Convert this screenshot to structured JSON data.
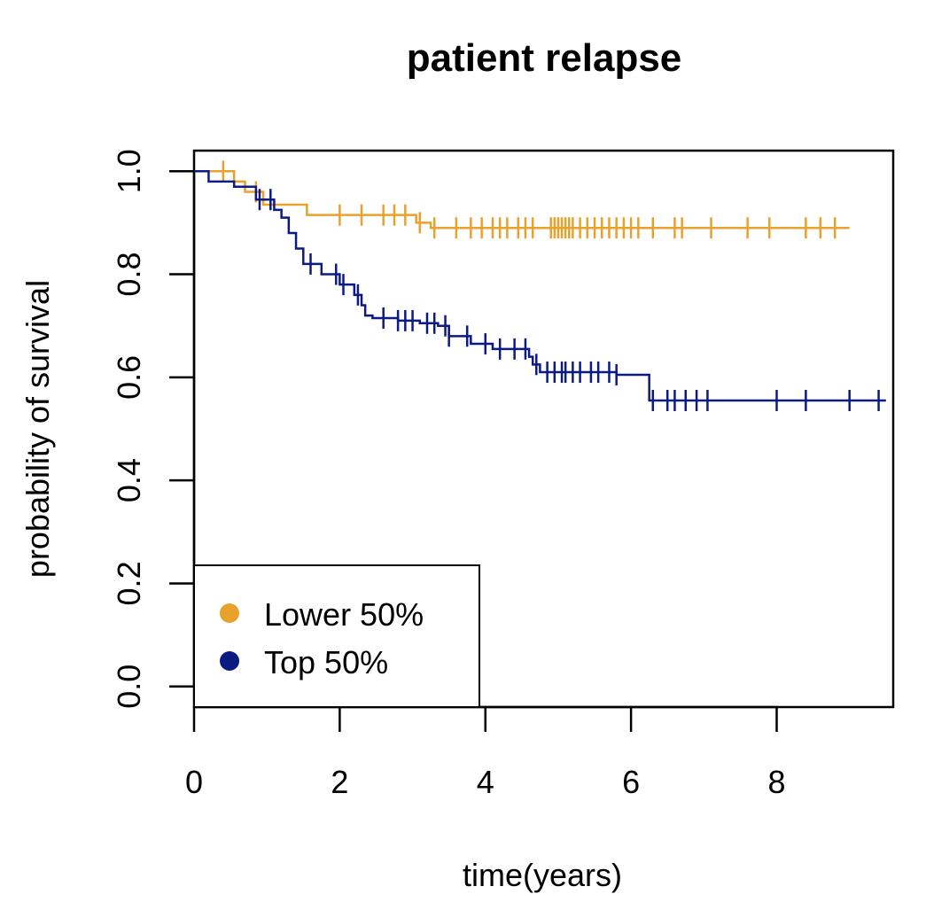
{
  "chart_data": {
    "type": "line",
    "title": "patient relapse",
    "xlabel": "time(years)",
    "ylabel": "probability of survival",
    "xlim": [
      0,
      9.6
    ],
    "ylim": [
      -0.04,
      1.04
    ],
    "x_ticks": [
      0,
      2,
      4,
      6,
      8
    ],
    "x_tick_labels": [
      "0",
      "2",
      "4",
      "6",
      "8"
    ],
    "y_ticks": [
      0.0,
      0.2,
      0.4,
      0.6,
      0.8,
      1.0
    ],
    "y_tick_labels": [
      "0.0",
      "0.2",
      "0.4",
      "0.6",
      "0.8",
      "1.0"
    ],
    "grid": false,
    "legend_position": "bottom-left",
    "series": [
      {
        "name": "Lower 50%",
        "color": "#E8A22C",
        "steps": [
          [
            0,
            1.0
          ],
          [
            0.55,
            0.98
          ],
          [
            0.7,
            0.96
          ],
          [
            0.95,
            0.935
          ],
          [
            1.55,
            0.915
          ],
          [
            3.05,
            0.9
          ],
          [
            3.25,
            0.89
          ]
        ],
        "end_x": 9.0,
        "censored": [
          0.4,
          0.85,
          2.0,
          2.3,
          2.6,
          2.75,
          2.9,
          3.1,
          3.3,
          3.6,
          3.8,
          3.95,
          4.1,
          4.2,
          4.3,
          4.45,
          4.55,
          4.65,
          4.9,
          4.95,
          5.0,
          5.05,
          5.1,
          5.15,
          5.2,
          5.3,
          5.4,
          5.5,
          5.6,
          5.7,
          5.8,
          5.9,
          6.0,
          6.1,
          6.3,
          6.6,
          6.7,
          7.1,
          7.6,
          7.9,
          8.4,
          8.6,
          8.8
        ]
      },
      {
        "name": "Top 50%",
        "color": "#0C1A84",
        "steps": [
          [
            0,
            1.0
          ],
          [
            0.2,
            0.98
          ],
          [
            0.55,
            0.97
          ],
          [
            0.85,
            0.945
          ],
          [
            1.1,
            0.925
          ],
          [
            1.2,
            0.91
          ],
          [
            1.3,
            0.88
          ],
          [
            1.4,
            0.85
          ],
          [
            1.5,
            0.82
          ],
          [
            1.75,
            0.8
          ],
          [
            2.0,
            0.78
          ],
          [
            2.2,
            0.76
          ],
          [
            2.3,
            0.74
          ],
          [
            2.35,
            0.72
          ],
          [
            2.45,
            0.715
          ],
          [
            2.8,
            0.71
          ],
          [
            3.1,
            0.705
          ],
          [
            3.35,
            0.7
          ],
          [
            3.5,
            0.68
          ],
          [
            3.8,
            0.665
          ],
          [
            4.1,
            0.655
          ],
          [
            4.6,
            0.64
          ],
          [
            4.65,
            0.625
          ],
          [
            4.75,
            0.61
          ],
          [
            5.8,
            0.605
          ],
          [
            6.25,
            0.555
          ]
        ],
        "end_x": 9.5,
        "censored": [
          0.9,
          1.05,
          1.6,
          1.95,
          2.05,
          2.25,
          2.6,
          2.8,
          2.9,
          3.0,
          3.2,
          3.3,
          3.45,
          3.5,
          3.75,
          4.0,
          4.2,
          4.4,
          4.55,
          4.7,
          4.85,
          4.95,
          5.05,
          5.1,
          5.2,
          5.3,
          5.45,
          5.55,
          5.7,
          5.8,
          6.3,
          6.5,
          6.6,
          6.75,
          6.9,
          7.05,
          8.0,
          8.4,
          9.0,
          9.4
        ]
      }
    ]
  }
}
